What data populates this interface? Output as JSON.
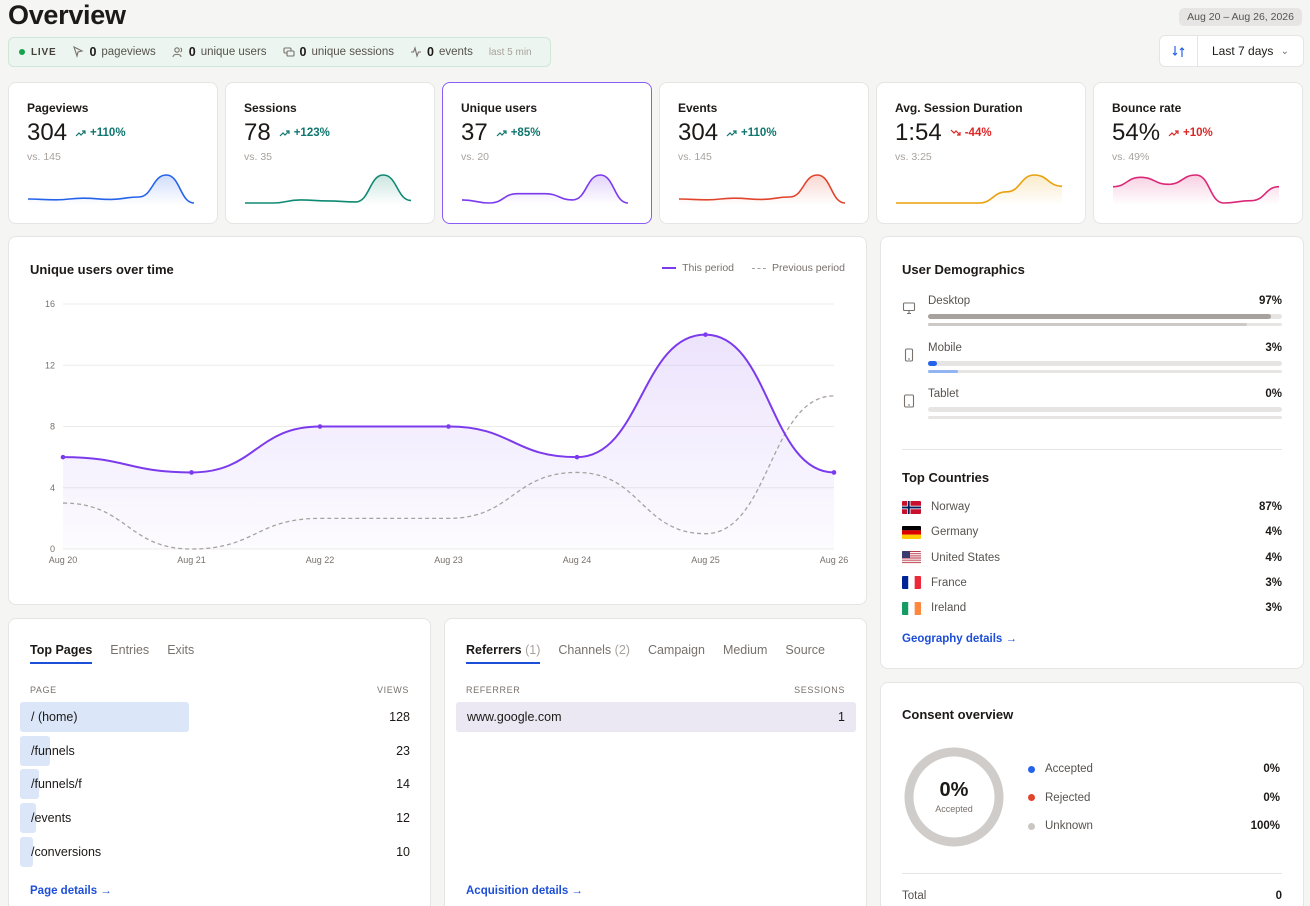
{
  "page_title": "Overview",
  "date_range_label": "Aug 20 – Aug 26, 2026",
  "range_select": "Last 7 days",
  "live": {
    "label": "LIVE",
    "pageviews_count": "0",
    "pageviews_label": "pageviews",
    "users_count": "0",
    "users_label": "unique users",
    "sessions_count": "0",
    "sessions_label": "unique sessions",
    "events_count": "0",
    "events_label": "events",
    "window": "last 5 min"
  },
  "kpis": [
    {
      "title": "Pageviews",
      "value": "304",
      "delta": "+110%",
      "trend": "up",
      "vs": "vs. 145",
      "color": "#2563eb",
      "spark": [
        2,
        1.8,
        2.2,
        1.9,
        2.5,
        8,
        1
      ]
    },
    {
      "title": "Sessions",
      "value": "78",
      "delta": "+123%",
      "trend": "up",
      "vs": "vs. 35",
      "color": "#0f8a72",
      "spark": [
        2,
        2,
        2.6,
        2.4,
        2.2,
        7.5,
        2.5
      ]
    },
    {
      "title": "Unique users",
      "value": "37",
      "delta": "+85%",
      "trend": "up",
      "vs": "vs. 20",
      "color": "#7c3aed",
      "spark": [
        6,
        5,
        8,
        8,
        6,
        14,
        5
      ]
    },
    {
      "title": "Events",
      "value": "304",
      "delta": "+110%",
      "trend": "up",
      "vs": "vs. 145",
      "color": "#e0442c",
      "spark": [
        2,
        1.8,
        2.2,
        1.9,
        2.5,
        8,
        1
      ]
    },
    {
      "title": "Avg. Session Duration",
      "value": "1:54",
      "delta": "-44%",
      "trend": "down",
      "vs": "vs. 3:25",
      "color": "#e8a10a",
      "spark": [
        2,
        2,
        2,
        2,
        4,
        7,
        5
      ]
    },
    {
      "title": "Bounce rate",
      "value": "54%",
      "delta": "+10%",
      "trend": "down",
      "vs": "vs. 49%",
      "color": "#db2777",
      "spark": [
        5,
        7,
        5.5,
        7.5,
        1.5,
        2,
        5
      ]
    }
  ],
  "main_chart": {
    "title": "Unique users over time",
    "legend_current": "This period",
    "legend_previous": "Previous period"
  },
  "chart_data": {
    "type": "line",
    "title": "Unique users over time",
    "x": [
      "Aug 20",
      "Aug 21",
      "Aug 22",
      "Aug 23",
      "Aug 24",
      "Aug 25",
      "Aug 26"
    ],
    "yticks": [
      0,
      4,
      8,
      12,
      16
    ],
    "ylim": [
      0,
      16
    ],
    "series": [
      {
        "name": "This period",
        "values": [
          6,
          5,
          8,
          8,
          6,
          14,
          5
        ],
        "color": "#7c3aed",
        "style": "solid"
      },
      {
        "name": "Previous period",
        "values": [
          3,
          0,
          2,
          2,
          5,
          1,
          10
        ],
        "color": "#a8a29e",
        "style": "dashed"
      }
    ],
    "grid": true,
    "legend": "top-right"
  },
  "demographics": {
    "title": "User Demographics",
    "devices": [
      {
        "name": "Desktop",
        "pct": "97%",
        "value": 0.97,
        "prev": 0.9,
        "color": "#a8a29e",
        "prev_color": "#cdc9c6",
        "icon": "desktop-icon"
      },
      {
        "name": "Mobile",
        "pct": "3%",
        "value": 0.025,
        "prev": 0.085,
        "color": "#2563eb",
        "prev_color": "#93b4f2",
        "icon": "mobile-icon"
      },
      {
        "name": "Tablet",
        "pct": "0%",
        "value": 0,
        "prev": 0,
        "color": "#a8a29e",
        "prev_color": "#cdc9c6",
        "icon": "tablet-icon"
      }
    ],
    "countries_title": "Top Countries",
    "countries": [
      {
        "name": "Norway",
        "pct": "87%",
        "flag": "norway"
      },
      {
        "name": "Germany",
        "pct": "4%",
        "flag": "germany"
      },
      {
        "name": "United States",
        "pct": "4%",
        "flag": "usa"
      },
      {
        "name": "France",
        "pct": "3%",
        "flag": "france"
      },
      {
        "name": "Ireland",
        "pct": "3%",
        "flag": "ireland"
      }
    ],
    "link": "Geography details →"
  },
  "pages": {
    "tabs": [
      "Top Pages",
      "Entries",
      "Exits"
    ],
    "col_page": "PAGE",
    "col_views": "VIEWS",
    "rows": [
      {
        "page": "/ (home)",
        "views": "128",
        "share": 1.0
      },
      {
        "page": "/funnels",
        "views": "23",
        "share": 0.18
      },
      {
        "page": "/funnels/f",
        "views": "14",
        "share": 0.11
      },
      {
        "page": "/events",
        "views": "12",
        "share": 0.094
      },
      {
        "page": "/conversions",
        "views": "10",
        "share": 0.078
      }
    ],
    "link": "Page details →"
  },
  "referrers": {
    "tabs": [
      {
        "label": "Referrers",
        "count": "(1)"
      },
      {
        "label": "Channels",
        "count": "(2)"
      },
      {
        "label": "Campaign",
        "count": ""
      },
      {
        "label": "Medium",
        "count": ""
      },
      {
        "label": "Source",
        "count": ""
      }
    ],
    "col_referrer": "REFERRER",
    "col_sessions": "SESSIONS",
    "rows": [
      {
        "referrer": "www.google.com",
        "sessions": "1"
      }
    ],
    "link": "Acquisition details →"
  },
  "consent": {
    "title": "Consent overview",
    "center_value": "0%",
    "center_label": "Accepted",
    "items": [
      {
        "name": "Accepted",
        "pct": "0%",
        "color": "#2563eb"
      },
      {
        "name": "Rejected",
        "pct": "0%",
        "color": "#e0442c"
      },
      {
        "name": "Unknown",
        "pct": "100%",
        "color": "#c9c6c3"
      }
    ],
    "total_label": "Total",
    "total_value": "0"
  }
}
